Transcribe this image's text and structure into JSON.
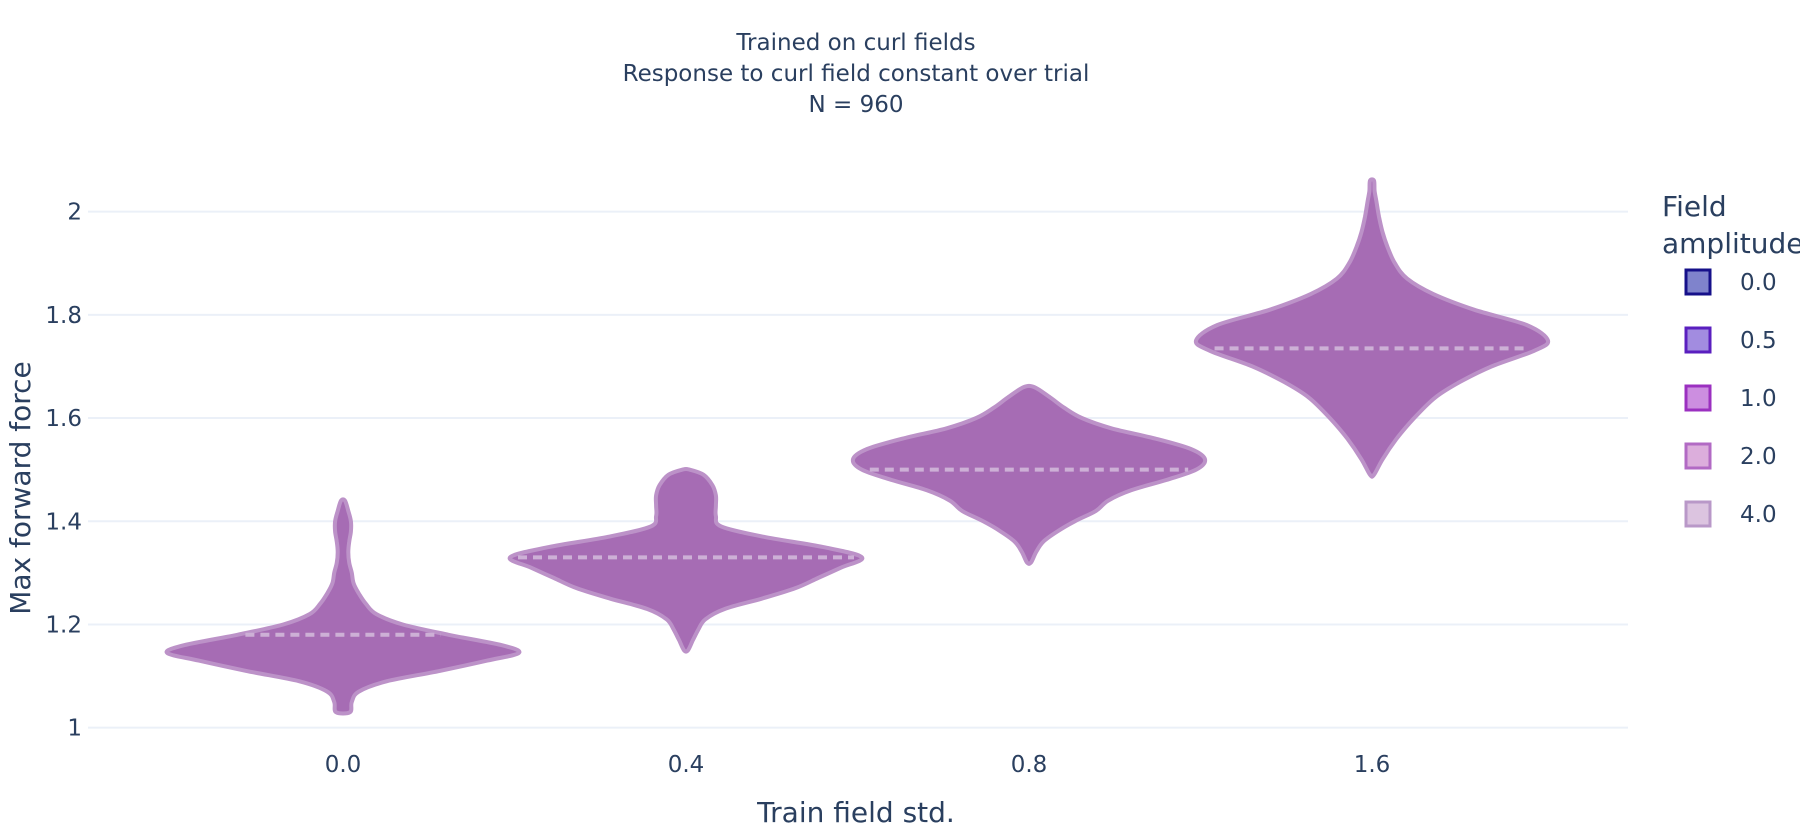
{
  "chart_data": {
    "type": "violin",
    "title_lines": [
      "Trained on curl fields",
      "Response to curl field constant over trial",
      "N = 960"
    ],
    "xlabel": "Train field std.",
    "ylabel": "Max forward force",
    "categories": [
      "0.0",
      "0.4",
      "0.8",
      "1.6"
    ],
    "y_ticks": [
      "1",
      "1.2",
      "1.4",
      "1.6",
      "1.8",
      "2"
    ],
    "y_tick_values": [
      1.0,
      1.2,
      1.4,
      1.6,
      1.8,
      2.0
    ],
    "ylim": [
      0.98,
      2.1
    ],
    "grid": true,
    "legend": {
      "title_lines": [
        "Field",
        "amplitude"
      ],
      "placement": "right",
      "entries": [
        {
          "label": "0.0",
          "fill": "#7f83cc",
          "stroke": "#16108a"
        },
        {
          "label": "0.5",
          "fill": "#a28ce0",
          "stroke": "#5a1fbf"
        },
        {
          "label": "1.0",
          "fill": "#cc8ee0",
          "stroke": "#9b30c0"
        },
        {
          "label": "2.0",
          "fill": "#dcaedc",
          "stroke": "#b26ac4"
        },
        {
          "label": "4.0",
          "fill": "#dcc4e0",
          "stroke": "#b998c8"
        }
      ]
    },
    "violin_fill": "#a66cb4",
    "violin_outline": "#bc92c8",
    "median_color": "#cdb0d6",
    "series": [
      {
        "category": "0.0",
        "median": 1.18,
        "min": 1.03,
        "max": 1.44,
        "profile": [
          [
            1.03,
            0.04
          ],
          [
            1.05,
            0.05
          ],
          [
            1.07,
            0.09
          ],
          [
            1.09,
            0.25
          ],
          [
            1.11,
            0.55
          ],
          [
            1.13,
            0.82
          ],
          [
            1.145,
            1.0
          ],
          [
            1.16,
            0.9
          ],
          [
            1.18,
            0.6
          ],
          [
            1.2,
            0.34
          ],
          [
            1.22,
            0.19
          ],
          [
            1.24,
            0.13
          ],
          [
            1.26,
            0.09
          ],
          [
            1.28,
            0.06
          ],
          [
            1.3,
            0.05
          ],
          [
            1.32,
            0.035
          ],
          [
            1.34,
            0.03
          ],
          [
            1.36,
            0.035
          ],
          [
            1.38,
            0.045
          ],
          [
            1.4,
            0.045
          ],
          [
            1.42,
            0.03
          ],
          [
            1.44,
            0.005
          ]
        ]
      },
      {
        "category": "0.4",
        "median": 1.33,
        "min": 1.15,
        "max": 1.5,
        "profile": [
          [
            1.15,
            0.0
          ],
          [
            1.17,
            0.04
          ],
          [
            1.19,
            0.07
          ],
          [
            1.21,
            0.11
          ],
          [
            1.23,
            0.22
          ],
          [
            1.25,
            0.43
          ],
          [
            1.27,
            0.62
          ],
          [
            1.29,
            0.75
          ],
          [
            1.31,
            0.88
          ],
          [
            1.33,
            1.0
          ],
          [
            1.35,
            0.78
          ],
          [
            1.37,
            0.44
          ],
          [
            1.39,
            0.2
          ],
          [
            1.41,
            0.17
          ],
          [
            1.43,
            0.17
          ],
          [
            1.45,
            0.17
          ],
          [
            1.47,
            0.15
          ],
          [
            1.49,
            0.1
          ],
          [
            1.5,
            0.02
          ]
        ]
      },
      {
        "category": "0.8",
        "median": 1.5,
        "min": 1.32,
        "max": 1.66,
        "profile": [
          [
            1.32,
            0.01
          ],
          [
            1.34,
            0.04
          ],
          [
            1.36,
            0.08
          ],
          [
            1.38,
            0.16
          ],
          [
            1.4,
            0.26
          ],
          [
            1.42,
            0.38
          ],
          [
            1.44,
            0.45
          ],
          [
            1.46,
            0.58
          ],
          [
            1.48,
            0.78
          ],
          [
            1.5,
            0.95
          ],
          [
            1.52,
            1.0
          ],
          [
            1.54,
            0.92
          ],
          [
            1.56,
            0.72
          ],
          [
            1.58,
            0.47
          ],
          [
            1.6,
            0.3
          ],
          [
            1.62,
            0.2
          ],
          [
            1.64,
            0.12
          ],
          [
            1.66,
            0.03
          ]
        ]
      },
      {
        "category": "1.6",
        "median": 1.735,
        "min": 1.49,
        "max": 2.06,
        "profile": [
          [
            1.49,
            0.01
          ],
          [
            1.52,
            0.06
          ],
          [
            1.56,
            0.14
          ],
          [
            1.6,
            0.24
          ],
          [
            1.64,
            0.36
          ],
          [
            1.67,
            0.5
          ],
          [
            1.7,
            0.68
          ],
          [
            1.73,
            0.92
          ],
          [
            1.75,
            1.0
          ],
          [
            1.78,
            0.88
          ],
          [
            1.81,
            0.58
          ],
          [
            1.84,
            0.35
          ],
          [
            1.87,
            0.2
          ],
          [
            1.9,
            0.13
          ],
          [
            1.93,
            0.09
          ],
          [
            1.96,
            0.06
          ],
          [
            1.99,
            0.04
          ],
          [
            2.02,
            0.025
          ],
          [
            2.04,
            0.015
          ],
          [
            2.06,
            0.005
          ]
        ]
      }
    ]
  }
}
